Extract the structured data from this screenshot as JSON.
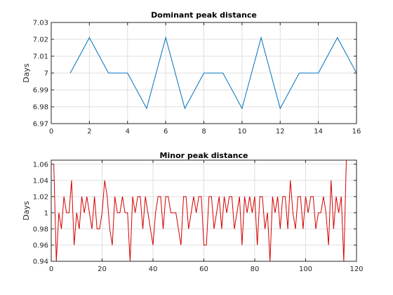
{
  "chart_data": [
    {
      "type": "line",
      "title": "Dominant peak distance",
      "xlabel": "",
      "ylabel": "Days",
      "xlim": [
        0,
        16
      ],
      "ylim": [
        6.97,
        7.03
      ],
      "xticks": [
        0,
        2,
        4,
        6,
        8,
        10,
        12,
        14,
        16
      ],
      "yticks": [
        6.97,
        6.98,
        6.99,
        7,
        7.01,
        7.02,
        7.03
      ],
      "xtick_labels": [
        "0",
        "2",
        "4",
        "6",
        "8",
        "10",
        "12",
        "14",
        "16"
      ],
      "ytick_labels": [
        "6.97",
        "6.98",
        "6.99",
        "7",
        "7.01",
        "7.02",
        "7.03"
      ],
      "grid": true,
      "color": "#0072bd",
      "x": [
        1,
        2,
        3,
        4,
        5,
        6,
        7,
        8,
        9,
        10,
        11,
        12,
        13,
        14,
        15,
        16
      ],
      "values": [
        7.0,
        7.021,
        7.0,
        7.0,
        6.979,
        7.021,
        6.979,
        7.0,
        7.0,
        6.979,
        7.021,
        6.979,
        7.0,
        7.0,
        7.021,
        7.0
      ]
    },
    {
      "type": "line",
      "title": "Minor peak distance",
      "xlabel": "",
      "ylabel": "Days",
      "xlim": [
        0,
        120
      ],
      "ylim": [
        0.94,
        1.065
      ],
      "xticks": [
        0,
        20,
        40,
        60,
        80,
        100,
        120
      ],
      "yticks": [
        0.94,
        0.96,
        0.98,
        1.0,
        1.02,
        1.04,
        1.06
      ],
      "xtick_labels": [
        "0",
        "20",
        "40",
        "60",
        "80",
        "100",
        "120"
      ],
      "ytick_labels": [
        "0.94",
        "0.96",
        "0.98",
        "1",
        "1.02",
        "1.04",
        "1.06"
      ],
      "grid": true,
      "color": "#d40000",
      "x": [
        1,
        2,
        3,
        4,
        5,
        6,
        7,
        8,
        9,
        10,
        11,
        12,
        13,
        14,
        15,
        16,
        17,
        18,
        19,
        20,
        21,
        22,
        23,
        24,
        25,
        26,
        27,
        28,
        29,
        30,
        31,
        32,
        33,
        34,
        35,
        36,
        37,
        38,
        39,
        40,
        41,
        42,
        43,
        44,
        45,
        46,
        47,
        48,
        49,
        50,
        51,
        52,
        53,
        54,
        55,
        56,
        57,
        58,
        59,
        60,
        61,
        62,
        63,
        64,
        65,
        66,
        67,
        68,
        69,
        70,
        71,
        72,
        73,
        74,
        75,
        76,
        77,
        78,
        79,
        80,
        81,
        82,
        83,
        84,
        85,
        86,
        87,
        88,
        89,
        90,
        91,
        92,
        93,
        94,
        95,
        96,
        97,
        98,
        99,
        100,
        101,
        102,
        103,
        104,
        105,
        106,
        107,
        108,
        109,
        110,
        111,
        112,
        113,
        114,
        115,
        116
      ],
      "values": [
        1.06,
        0.94,
        1.0,
        0.98,
        1.02,
        1.0,
        1.0,
        1.04,
        0.96,
        1.0,
        0.98,
        1.02,
        1.0,
        1.02,
        1.0,
        0.98,
        1.02,
        0.98,
        0.98,
        1.0,
        1.04,
        1.02,
        0.98,
        0.96,
        1.02,
        1.0,
        1.0,
        1.02,
        1.0,
        1.0,
        0.94,
        1.02,
        1.0,
        1.02,
        1.02,
        0.98,
        1.02,
        1.0,
        0.98,
        0.96,
        1.0,
        1.02,
        1.02,
        0.98,
        1.02,
        1.02,
        1.0,
        1.0,
        1.0,
        0.98,
        0.96,
        1.02,
        1.02,
        0.98,
        1.0,
        1.02,
        1.0,
        1.02,
        1.02,
        0.96,
        0.96,
        1.02,
        1.02,
        0.98,
        1.0,
        1.02,
        0.98,
        1.02,
        1.0,
        1.02,
        1.02,
        0.98,
        1.0,
        1.02,
        0.96,
        1.02,
        1.0,
        1.02,
        1.0,
        1.02,
        0.96,
        1.02,
        1.02,
        0.98,
        1.0,
        0.94,
        1.02,
        1.0,
        1.02,
        0.98,
        1.02,
        1.02,
        0.98,
        1.04,
        1.0,
        0.98,
        1.02,
        1.02,
        0.98,
        1.02,
        1.0,
        1.02,
        1.02,
        0.98,
        1.0,
        1.0,
        1.02,
        1.0,
        0.96,
        1.04,
        0.98,
        1.02,
        1.0,
        1.02,
        0.94,
        1.065
      ]
    }
  ]
}
